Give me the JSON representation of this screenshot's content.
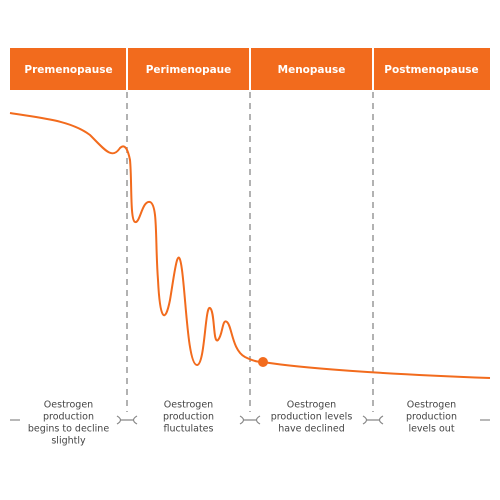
{
  "phases": [
    {
      "label": "Premenopause",
      "description": [
        "Oestrogen",
        "production",
        "begins to decline",
        "slightly"
      ]
    },
    {
      "label": "Perimenopaue",
      "description": [
        "Oestrogen",
        "production",
        "fluctulates"
      ]
    },
    {
      "label": "Menopause",
      "description": [
        "Oestrogen",
        "production levels",
        "have declined"
      ]
    },
    {
      "label": "Postmenopause",
      "description": [
        "Oestrogen",
        "production",
        "levels out"
      ]
    }
  ]
}
